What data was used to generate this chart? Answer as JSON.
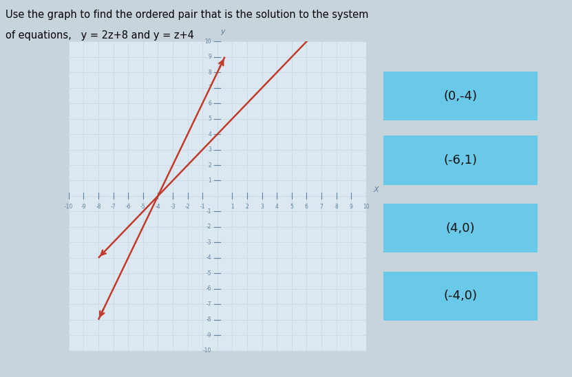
{
  "title_line1": "Use the graph to find the ordered pair that is the solution to the system",
  "title_line2": "of equations, ",
  "title_eq": "y = 2z+8 and y = z+4",
  "xlim": [
    -10,
    10
  ],
  "ylim": [
    -10,
    10
  ],
  "line_color": "#c0392b",
  "grid_color": "#c8d8e8",
  "axis_color": "#6080a0",
  "bg_color": "#dce8f0",
  "page_bg": "#c8d4dc",
  "answer_bg": "#6ac8e8",
  "answer_text_color": "#111111",
  "answers": [
    "(0,-4)",
    "(-6,1)",
    "(4,0)",
    "(-4,0)"
  ],
  "eq1_x_start": -8,
  "eq1_x_end": 0.5,
  "eq2_x_start": -8,
  "eq2_x_end": 6.5,
  "xlabel": "X",
  "ylabel": "y"
}
